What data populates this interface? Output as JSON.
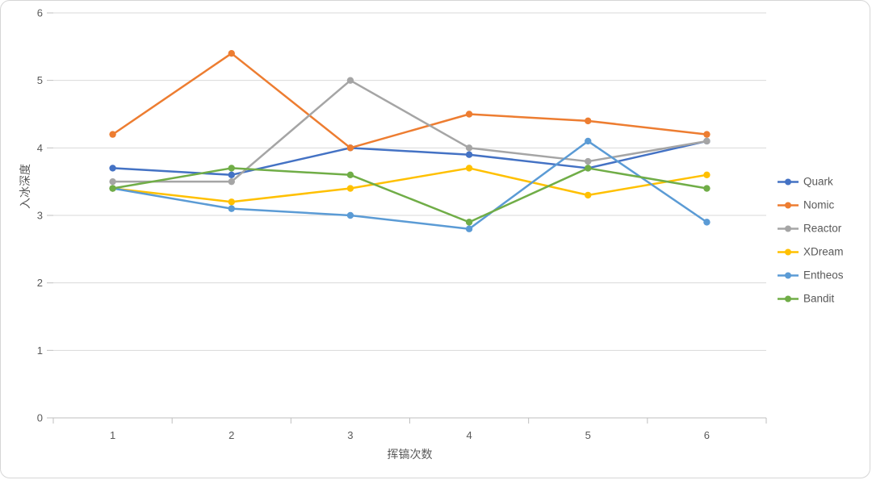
{
  "chart_data": {
    "type": "line",
    "title": "",
    "xlabel": "挥镐次数",
    "ylabel": "入冰深度",
    "categories": [
      "1",
      "2",
      "3",
      "4",
      "5",
      "6"
    ],
    "ylim": [
      0,
      6
    ],
    "ytick_step": 1,
    "yticks": [
      0,
      1,
      2,
      3,
      4,
      5,
      6
    ],
    "grid": true,
    "legend_position": "right",
    "series": [
      {
        "name": "Quark",
        "color": "#4472C4",
        "values": [
          3.7,
          3.6,
          4.0,
          3.9,
          3.7,
          4.1
        ]
      },
      {
        "name": "Nomic",
        "color": "#ED7D31",
        "values": [
          4.2,
          5.4,
          4.0,
          4.5,
          4.4,
          4.2
        ]
      },
      {
        "name": "Reactor",
        "color": "#A5A5A5",
        "values": [
          3.5,
          3.5,
          5.0,
          4.0,
          3.8,
          4.1
        ]
      },
      {
        "name": "XDream",
        "color": "#FFC000",
        "values": [
          3.4,
          3.2,
          3.4,
          3.7,
          3.3,
          3.6
        ]
      },
      {
        "name": "Entheos",
        "color": "#5B9BD5",
        "values": [
          3.4,
          3.1,
          3.0,
          2.8,
          4.1,
          2.9
        ]
      },
      {
        "name": "Bandit",
        "color": "#70AD47",
        "values": [
          3.4,
          3.7,
          3.6,
          2.9,
          3.7,
          3.4
        ]
      }
    ],
    "axis_colors": {
      "gridline": "#d9d9d9",
      "axis_line": "#bfbfbf",
      "tick_text": "#595959"
    }
  }
}
